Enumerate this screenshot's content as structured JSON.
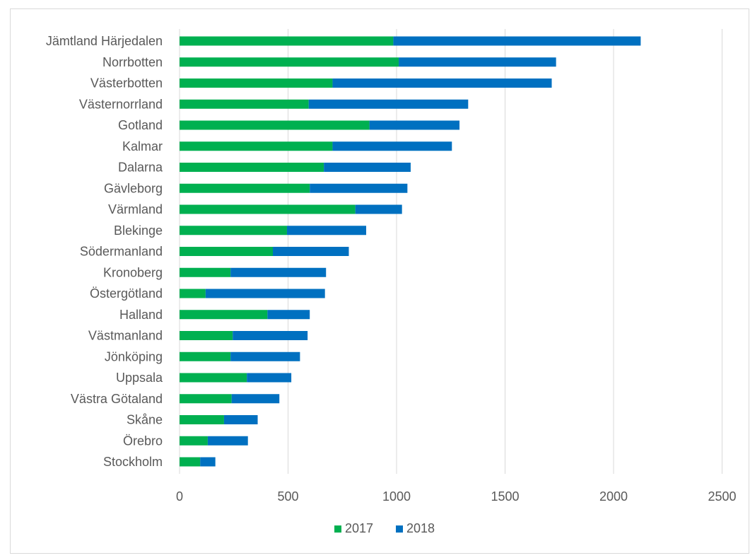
{
  "chart_data": {
    "type": "bar",
    "orientation": "horizontal",
    "stacked": true,
    "title": "",
    "xlabel": "",
    "ylabel": "",
    "categories": [
      "Jämtland Härjedalen",
      "Norrbotten",
      "Västerbotten",
      "Västernorrland",
      "Gotland",
      "Kalmar",
      "Dalarna",
      "Gävleborg",
      "Värmland",
      "Blekinge",
      "Södermanland",
      "Kronoberg",
      "Östergötland",
      "Halland",
      "Västmanland",
      "Jönköping",
      "Uppsala",
      "Västra Götaland",
      "Skåne",
      "Örebro",
      "Stockholm"
    ],
    "series": [
      {
        "name": "2017",
        "color": "#00b050",
        "values": [
          985,
          1010,
          705,
          595,
          875,
          705,
          665,
          600,
          810,
          495,
          430,
          235,
          120,
          405,
          245,
          235,
          310,
          240,
          205,
          130,
          95
        ]
      },
      {
        "name": "2018",
        "color": "#0070c0",
        "values": [
          1140,
          725,
          1010,
          735,
          415,
          550,
          400,
          450,
          215,
          365,
          350,
          440,
          550,
          195,
          345,
          320,
          205,
          220,
          155,
          185,
          70
        ]
      }
    ],
    "xlim": [
      0,
      2500
    ],
    "xticks": [
      0,
      500,
      1000,
      1500,
      2000,
      2500
    ],
    "grid": true,
    "legend": "bottom"
  }
}
